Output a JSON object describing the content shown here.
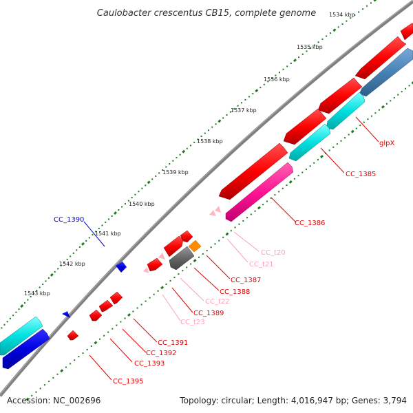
{
  "map": {
    "title": "Caulobacter crescentus CB15, complete genome",
    "accession_text": "Accession: NC_002696",
    "summary_text": "Topology: circular; Length: 4,016,947 bp; Genes: 3,794"
  },
  "ticks": [
    "1534 kbp",
    "1535 kbp",
    "1536 kbp",
    "1537 kbp",
    "1538 kbp",
    "1539 kbp",
    "1540 kbp",
    "1541 kbp",
    "1542 kbp",
    "1543 kbp"
  ],
  "labels": {
    "glpX": "glpX",
    "CC_1385": "CC_1385",
    "CC_1386": "CC_1386",
    "CC_t20": "CC_t20",
    "CC_t21": "CC_t21",
    "CC_1387": "CC_1387",
    "CC_1388": "CC_1388",
    "CC_t22": "CC_t22",
    "CC_1389": "CC_1389",
    "CC_t23": "CC_t23",
    "CC_1391": "CC_1391",
    "CC_1392": "CC_1392",
    "CC_1393": "CC_1393",
    "CC_1395": "CC_1395",
    "CC_1390": "CC_1390"
  },
  "colors": {
    "cds": "#ff0000",
    "rrna": "#ff1493",
    "trna": "#ffb6c1",
    "misc": "#666666",
    "orange": "#ff8c00",
    "cyan": "#00e5e5",
    "blue": "#0000e6",
    "steelblue": "#4682b4",
    "backbone": "#808080",
    "tick": "#1a7a1a",
    "label_red": "#e00000",
    "label_pink": "#ffa0b4",
    "label_blue": "#0000cc"
  }
}
